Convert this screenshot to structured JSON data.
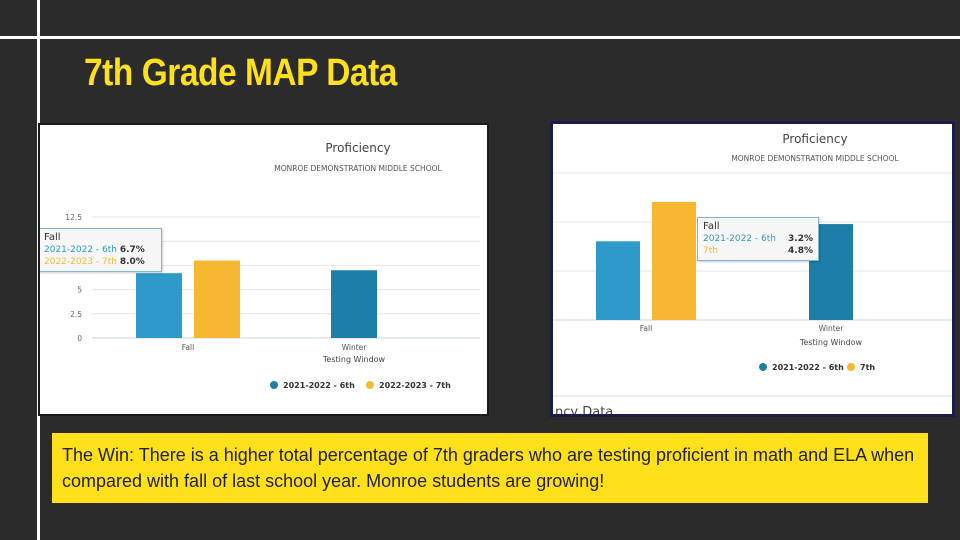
{
  "slide": {
    "title": "7th Grade MAP Data",
    "win_text": "The Win: There is a higher total percentage of 7th graders who are testing proficient in math and ELA when compared with fall of  last school year.  Monroe students are growing!",
    "cut_text": "ncy Data"
  },
  "colors": {
    "background": "#2b2b2b",
    "accent": "#ffe01b",
    "series_blue": "#2e9acb",
    "series_gold": "#f6b830",
    "series_blue_dark": "#1d7fa8"
  },
  "chart_data": [
    {
      "type": "bar",
      "title": "Proficiency",
      "subtitle": "MONROE DEMONSTRATION MIDDLE SCHOOL",
      "xlabel": "Testing Window",
      "ylabel": "",
      "categories": [
        "Fall",
        "Winter"
      ],
      "ylim": [
        0,
        12.5
      ],
      "yticks": [
        "0",
        "2.5",
        "5",
        "7.5",
        "10",
        "12.5"
      ],
      "series": [
        {
          "name": "2021-2022 - 6th",
          "values": [
            6.7,
            7.0
          ]
        },
        {
          "name": "2022-2023 - 7th",
          "values": [
            8.0,
            null
          ]
        }
      ],
      "tooltip": {
        "header": "Fall",
        "rows": [
          {
            "label": "2021-2022 - 6th",
            "value": "6.7%"
          },
          {
            "label": "2022-2023 - 7th",
            "value": "8.0%"
          }
        ]
      },
      "legend": "bottom"
    },
    {
      "type": "bar",
      "title": "Proficiency",
      "subtitle": "MONROE DEMONSTRATION MIDDLE SCHOOL",
      "xlabel": "Testing Window",
      "categories": [
        "Fall",
        "Winter"
      ],
      "series": [
        {
          "name": "2021-2022 - 6th",
          "values": [
            3.2,
            3.9
          ]
        },
        {
          "name": "7th",
          "values": [
            4.8,
            null
          ]
        }
      ],
      "tooltip": {
        "header": "Fall",
        "rows": [
          {
            "label": "2021-2022 - 6th",
            "value": "3.2%"
          },
          {
            "label": "7th",
            "value": "4.8%"
          }
        ]
      },
      "legend": "bottom"
    }
  ]
}
